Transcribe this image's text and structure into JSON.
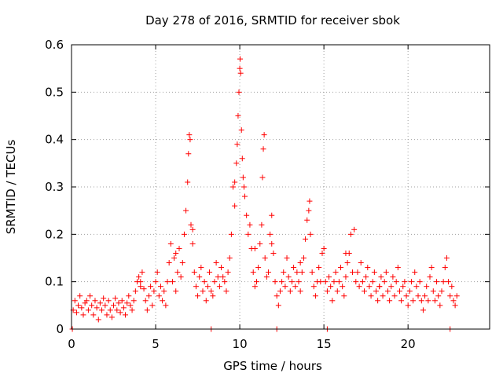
{
  "chart_data": {
    "type": "scatter",
    "title": "Day 278 of 2016, SRMTID for receiver sbok",
    "xlabel": "GPS time / hours",
    "ylabel": "SRMTID / TECUs",
    "xlim": [
      0,
      24.85
    ],
    "ylim": [
      0,
      0.6
    ],
    "xticks": [
      0,
      5,
      10,
      15,
      20
    ],
    "xtick_labels": [
      "0",
      "5",
      "10",
      "15",
      "20"
    ],
    "yticks": [
      0,
      0.1,
      0.2,
      0.3,
      0.4,
      0.5,
      0.6
    ],
    "ytick_labels": [
      "0",
      "0.1",
      "0.2",
      "0.3",
      "0.4",
      "0.5",
      "0.6"
    ],
    "grid": true,
    "marker": "+",
    "color": "#ff0000",
    "series": [
      {
        "name": "SRMTID",
        "points": [
          [
            0.05,
            0.0
          ],
          [
            0.1,
            0.04
          ],
          [
            0.2,
            0.06
          ],
          [
            0.3,
            0.035
          ],
          [
            0.4,
            0.05
          ],
          [
            0.5,
            0.07
          ],
          [
            0.6,
            0.045
          ],
          [
            0.7,
            0.03
          ],
          [
            0.8,
            0.055
          ],
          [
            0.9,
            0.06
          ],
          [
            1.0,
            0.04
          ],
          [
            1.1,
            0.07
          ],
          [
            1.2,
            0.05
          ],
          [
            1.3,
            0.03
          ],
          [
            1.4,
            0.06
          ],
          [
            1.5,
            0.045
          ],
          [
            1.6,
            0.02
          ],
          [
            1.7,
            0.055
          ],
          [
            1.8,
            0.04
          ],
          [
            1.9,
            0.065
          ],
          [
            2.0,
            0.05
          ],
          [
            2.1,
            0.03
          ],
          [
            2.2,
            0.06
          ],
          [
            2.3,
            0.04
          ],
          [
            2.4,
            0.025
          ],
          [
            2.5,
            0.05
          ],
          [
            2.6,
            0.065
          ],
          [
            2.7,
            0.04
          ],
          [
            2.8,
            0.055
          ],
          [
            2.9,
            0.035
          ],
          [
            3.0,
            0.06
          ],
          [
            3.1,
            0.045
          ],
          [
            3.2,
            0.03
          ],
          [
            3.3,
            0.055
          ],
          [
            3.4,
            0.07
          ],
          [
            3.5,
            0.05
          ],
          [
            3.6,
            0.04
          ],
          [
            3.7,
            0.06
          ],
          [
            3.8,
            0.08
          ],
          [
            3.9,
            0.1
          ],
          [
            4.0,
            0.11
          ],
          [
            4.1,
            0.09
          ],
          [
            4.2,
            0.12
          ],
          [
            4.3,
            0.085
          ],
          [
            4.4,
            0.06
          ],
          [
            4.5,
            0.04
          ],
          [
            4.6,
            0.07
          ],
          [
            4.7,
            0.09
          ],
          [
            4.8,
            0.05
          ],
          [
            4.9,
            0.08
          ],
          [
            5.0,
            0.1
          ],
          [
            5.1,
            0.12
          ],
          [
            5.2,
            0.07
          ],
          [
            5.3,
            0.09
          ],
          [
            5.4,
            0.06
          ],
          [
            5.5,
            0.08
          ],
          [
            5.6,
            0.05
          ],
          [
            5.7,
            0.1
          ],
          [
            5.8,
            0.14
          ],
          [
            5.9,
            0.18
          ],
          [
            6.0,
            0.1
          ],
          [
            6.1,
            0.15
          ],
          [
            6.2,
            0.08
          ],
          [
            6.3,
            0.12
          ],
          [
            6.4,
            0.17
          ],
          [
            6.5,
            0.11
          ],
          [
            6.6,
            0.14
          ],
          [
            6.7,
            0.2
          ],
          [
            6.8,
            0.25
          ],
          [
            6.9,
            0.31
          ],
          [
            6.95,
            0.37
          ],
          [
            7.0,
            0.41
          ],
          [
            7.05,
            0.4
          ],
          [
            7.1,
            0.22
          ],
          [
            7.2,
            0.18
          ],
          [
            7.3,
            0.12
          ],
          [
            7.4,
            0.09
          ],
          [
            7.5,
            0.07
          ],
          [
            7.6,
            0.11
          ],
          [
            7.7,
            0.13
          ],
          [
            7.8,
            0.08
          ],
          [
            7.9,
            0.1
          ],
          [
            8.0,
            0.06
          ],
          [
            8.1,
            0.09
          ],
          [
            8.2,
            0.12
          ],
          [
            8.3,
            0.08
          ],
          [
            8.4,
            0.07
          ],
          [
            8.5,
            0.1
          ],
          [
            8.6,
            0.14
          ],
          [
            8.7,
            0.11
          ],
          [
            8.8,
            0.09
          ],
          [
            8.9,
            0.13
          ],
          [
            9.0,
            0.11
          ],
          [
            9.1,
            0.1
          ],
          [
            9.2,
            0.08
          ],
          [
            9.3,
            0.12
          ],
          [
            9.4,
            0.15
          ],
          [
            9.5,
            0.2
          ],
          [
            9.6,
            0.3
          ],
          [
            9.7,
            0.26
          ],
          [
            9.8,
            0.35
          ],
          [
            9.85,
            0.39
          ],
          [
            9.9,
            0.45
          ],
          [
            9.95,
            0.5
          ],
          [
            10.0,
            0.55
          ],
          [
            10.02,
            0.57
          ],
          [
            10.05,
            0.54
          ],
          [
            10.1,
            0.42
          ],
          [
            10.15,
            0.36
          ],
          [
            10.2,
            0.32
          ],
          [
            10.3,
            0.28
          ],
          [
            10.4,
            0.24
          ],
          [
            10.5,
            0.2
          ],
          [
            10.6,
            0.22
          ],
          [
            10.7,
            0.17
          ],
          [
            10.8,
            0.12
          ],
          [
            10.9,
            0.09
          ],
          [
            11.0,
            0.1
          ],
          [
            11.1,
            0.13
          ],
          [
            11.2,
            0.18
          ],
          [
            11.3,
            0.22
          ],
          [
            11.35,
            0.32
          ],
          [
            11.4,
            0.38
          ],
          [
            11.45,
            0.41
          ],
          [
            11.5,
            0.15
          ],
          [
            11.6,
            0.11
          ],
          [
            11.7,
            0.12
          ],
          [
            11.8,
            0.2
          ],
          [
            11.9,
            0.24
          ],
          [
            12.0,
            0.16
          ],
          [
            12.1,
            0.1
          ],
          [
            12.2,
            0.07
          ],
          [
            12.3,
            0.05
          ],
          [
            12.4,
            0.08
          ],
          [
            12.5,
            0.1
          ],
          [
            12.6,
            0.12
          ],
          [
            12.7,
            0.09
          ],
          [
            12.8,
            0.15
          ],
          [
            12.9,
            0.11
          ],
          [
            13.0,
            0.08
          ],
          [
            13.1,
            0.1
          ],
          [
            13.2,
            0.13
          ],
          [
            13.3,
            0.09
          ],
          [
            13.4,
            0.12
          ],
          [
            13.5,
            0.1
          ],
          [
            13.6,
            0.08
          ],
          [
            13.7,
            0.12
          ],
          [
            13.8,
            0.15
          ],
          [
            13.9,
            0.19
          ],
          [
            14.0,
            0.23
          ],
          [
            14.1,
            0.25
          ],
          [
            14.15,
            0.27
          ],
          [
            14.2,
            0.2
          ],
          [
            14.3,
            0.12
          ],
          [
            14.4,
            0.09
          ],
          [
            14.5,
            0.07
          ],
          [
            14.6,
            0.1
          ],
          [
            14.7,
            0.13
          ],
          [
            14.8,
            0.1
          ],
          [
            14.9,
            0.16
          ],
          [
            15.0,
            0.17
          ],
          [
            15.1,
            0.1
          ],
          [
            15.2,
            0.08
          ],
          [
            15.3,
            0.11
          ],
          [
            15.4,
            0.09
          ],
          [
            15.5,
            0.06
          ],
          [
            15.6,
            0.1
          ],
          [
            15.7,
            0.12
          ],
          [
            15.8,
            0.08
          ],
          [
            15.9,
            0.1
          ],
          [
            16.0,
            0.13
          ],
          [
            16.1,
            0.09
          ],
          [
            16.2,
            0.07
          ],
          [
            16.3,
            0.11
          ],
          [
            16.4,
            0.14
          ],
          [
            16.5,
            0.16
          ],
          [
            16.6,
            0.2
          ],
          [
            16.7,
            0.12
          ],
          [
            16.8,
            0.21
          ],
          [
            16.9,
            0.1
          ],
          [
            17.0,
            0.12
          ],
          [
            17.1,
            0.09
          ],
          [
            17.2,
            0.14
          ],
          [
            17.3,
            0.1
          ],
          [
            17.4,
            0.08
          ],
          [
            17.5,
            0.11
          ],
          [
            17.6,
            0.13
          ],
          [
            17.7,
            0.09
          ],
          [
            17.8,
            0.07
          ],
          [
            17.9,
            0.1
          ],
          [
            18.0,
            0.12
          ],
          [
            18.1,
            0.08
          ],
          [
            18.2,
            0.06
          ],
          [
            18.3,
            0.09
          ],
          [
            18.4,
            0.11
          ],
          [
            18.5,
            0.07
          ],
          [
            18.6,
            0.1
          ],
          [
            18.7,
            0.12
          ],
          [
            18.8,
            0.08
          ],
          [
            18.9,
            0.06
          ],
          [
            19.0,
            0.09
          ],
          [
            19.1,
            0.11
          ],
          [
            19.2,
            0.07
          ],
          [
            19.3,
            0.1
          ],
          [
            19.4,
            0.13
          ],
          [
            19.5,
            0.08
          ],
          [
            19.6,
            0.06
          ],
          [
            19.7,
            0.09
          ],
          [
            19.8,
            0.1
          ],
          [
            19.9,
            0.07
          ],
          [
            20.0,
            0.05
          ],
          [
            20.1,
            0.08
          ],
          [
            20.2,
            0.1
          ],
          [
            20.3,
            0.06
          ],
          [
            20.4,
            0.12
          ],
          [
            20.5,
            0.09
          ],
          [
            20.6,
            0.07
          ],
          [
            20.7,
            0.1
          ],
          [
            20.8,
            0.06
          ],
          [
            20.9,
            0.04
          ],
          [
            21.0,
            0.07
          ],
          [
            21.1,
            0.09
          ],
          [
            21.2,
            0.06
          ],
          [
            21.3,
            0.11
          ],
          [
            21.4,
            0.13
          ],
          [
            21.5,
            0.08
          ],
          [
            21.6,
            0.06
          ],
          [
            21.7,
            0.1
          ],
          [
            21.8,
            0.07
          ],
          [
            21.9,
            0.05
          ],
          [
            22.0,
            0.08
          ],
          [
            22.1,
            0.1
          ],
          [
            22.2,
            0.13
          ],
          [
            22.3,
            0.15
          ],
          [
            22.4,
            0.1
          ],
          [
            22.5,
            0.07
          ],
          [
            22.6,
            0.09
          ],
          [
            22.7,
            0.06
          ],
          [
            22.8,
            0.05
          ],
          [
            22.9,
            0.07
          ],
          [
            4.1,
            0.1
          ],
          [
            6.2,
            0.16
          ],
          [
            7.2,
            0.21
          ],
          [
            9.7,
            0.31
          ],
          [
            10.25,
            0.3
          ],
          [
            10.9,
            0.17
          ],
          [
            11.9,
            0.18
          ],
          [
            13.6,
            0.14
          ],
          [
            16.3,
            0.16
          ],
          [
            18.3,
            0.09
          ],
          [
            8.3,
            0.0
          ],
          [
            12.2,
            0.0
          ],
          [
            15.2,
            0.0
          ],
          [
            22.5,
            0.0
          ]
        ]
      }
    ]
  }
}
